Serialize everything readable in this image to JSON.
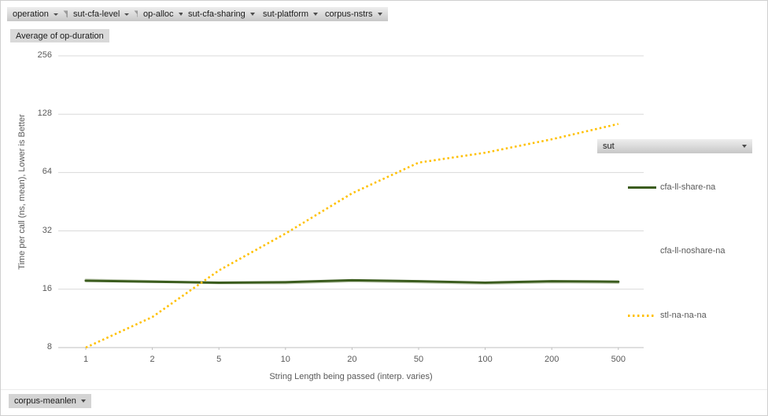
{
  "filters": {
    "top": [
      {
        "label": "operation",
        "filtered": true
      },
      {
        "label": "sut-cfa-level",
        "filtered": true
      },
      {
        "label": "op-alloc",
        "filtered": false
      },
      {
        "label": "sut-cfa-sharing",
        "filtered": false
      },
      {
        "label": "sut-platform",
        "filtered": false
      },
      {
        "label": "corpus-nstrs",
        "filtered": false
      }
    ],
    "value_button": "Average of op-duration",
    "legend_field_button": "sut",
    "axis_field_button": "corpus-meanlen"
  },
  "chart_data": {
    "type": "line",
    "title": "",
    "xlabel": "String Length  being passed (interp. varies)",
    "ylabel": "Time per call (ns, mean),  Lower is Better",
    "x_scale": "log (category positions)",
    "y_scale": "log2",
    "ylim": [
      8,
      256
    ],
    "y_ticks": [
      256,
      128,
      64,
      32,
      16,
      8
    ],
    "categories": [
      1,
      2,
      5,
      10,
      20,
      50,
      100,
      200,
      500
    ],
    "grid": true,
    "legend_position": "right",
    "series": [
      {
        "name": "cfa-ll-share-na",
        "color": "#3b5c1e",
        "style": "solid",
        "legend_marker": "solid",
        "legend_color": "#3b5c1e",
        "values": [
          17.7,
          17.5,
          17.3,
          17.4,
          17.8,
          17.6,
          17.3,
          17.6,
          17.5
        ]
      },
      {
        "name": "cfa-ll-noshare-na",
        "color": "#c9d2bd",
        "style": "solid",
        "legend_marker": "none",
        "legend_color": "#ffffff",
        "values": [
          17.9,
          17.6,
          17.2,
          17.2,
          17.6,
          17.4,
          17.1,
          17.4,
          17.3
        ]
      },
      {
        "name": "stl-na-na-na",
        "color": "#ffc000",
        "style": "dotted",
        "legend_marker": "dotted",
        "legend_color": "#ffc000",
        "values": [
          8,
          11.5,
          20,
          31,
          50,
          72,
          81,
          95,
          114
        ]
      }
    ],
    "colors": {
      "gridline": "#d9d9d9",
      "axis_line": "#bfbfbf",
      "tick_text": "#595959"
    }
  }
}
